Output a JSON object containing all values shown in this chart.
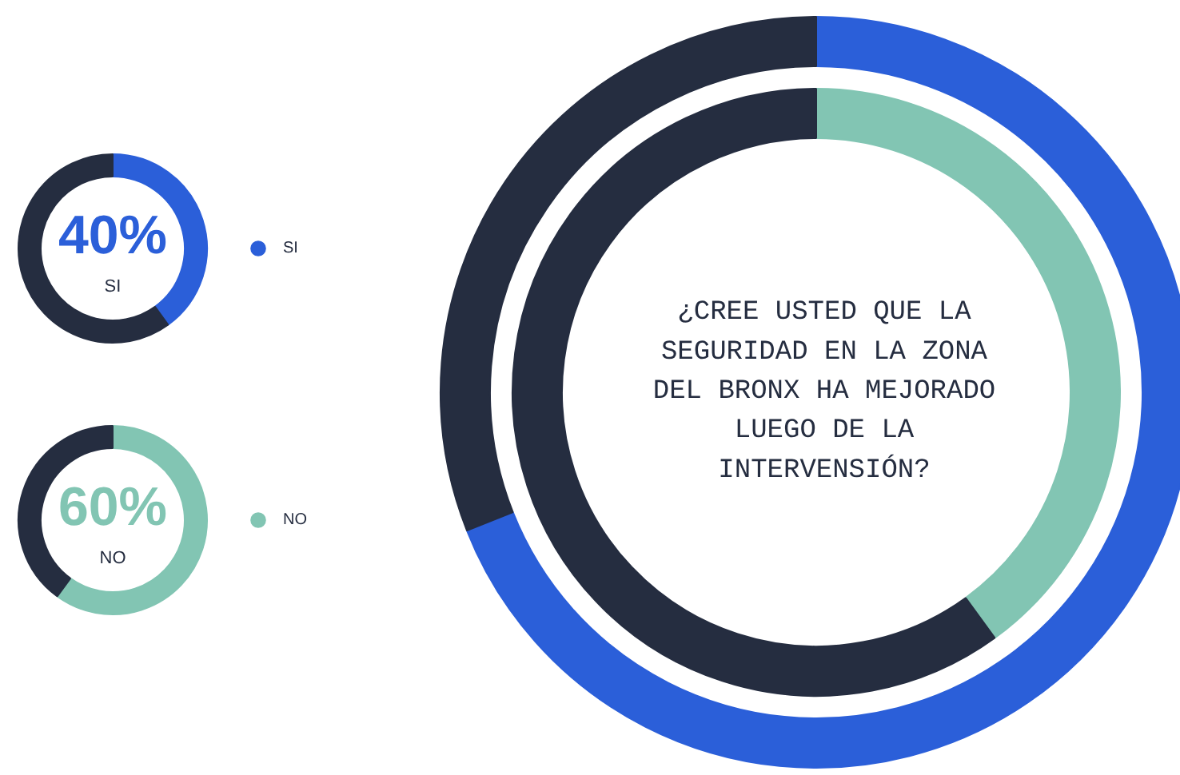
{
  "chart_data": [
    {
      "type": "donut",
      "title": "¿CREE USTED QUE LA SEGURIDAD EN LA ZONA DEL BRONX HA MEJORADO LUEGO DE LA INTERVENSIÓN?",
      "categories": [
        null,
        null
      ],
      "series": [
        {
          "values": [
            69,
            31
          ],
          "colors": [
            "#2b5fd9",
            "#252d40"
          ]
        },
        {
          "values": [
            40,
            60
          ],
          "colors": [
            "#82c5b3",
            "#252d40"
          ]
        }
      ]
    },
    {
      "type": "donut",
      "categories": [
        "SI",
        null
      ],
      "values": [
        40,
        60
      ],
      "colors": [
        "#2b5fd9",
        "#252d40"
      ],
      "value_labels": [
        "40%",
        null
      ],
      "legend": "right"
    },
    {
      "type": "donut",
      "categories": [
        "NO",
        null
      ],
      "values": [
        60,
        40
      ],
      "colors": [
        "#82c5b3",
        "#252d40"
      ],
      "value_labels": [
        "60%",
        null
      ],
      "legend": "right"
    }
  ]
}
